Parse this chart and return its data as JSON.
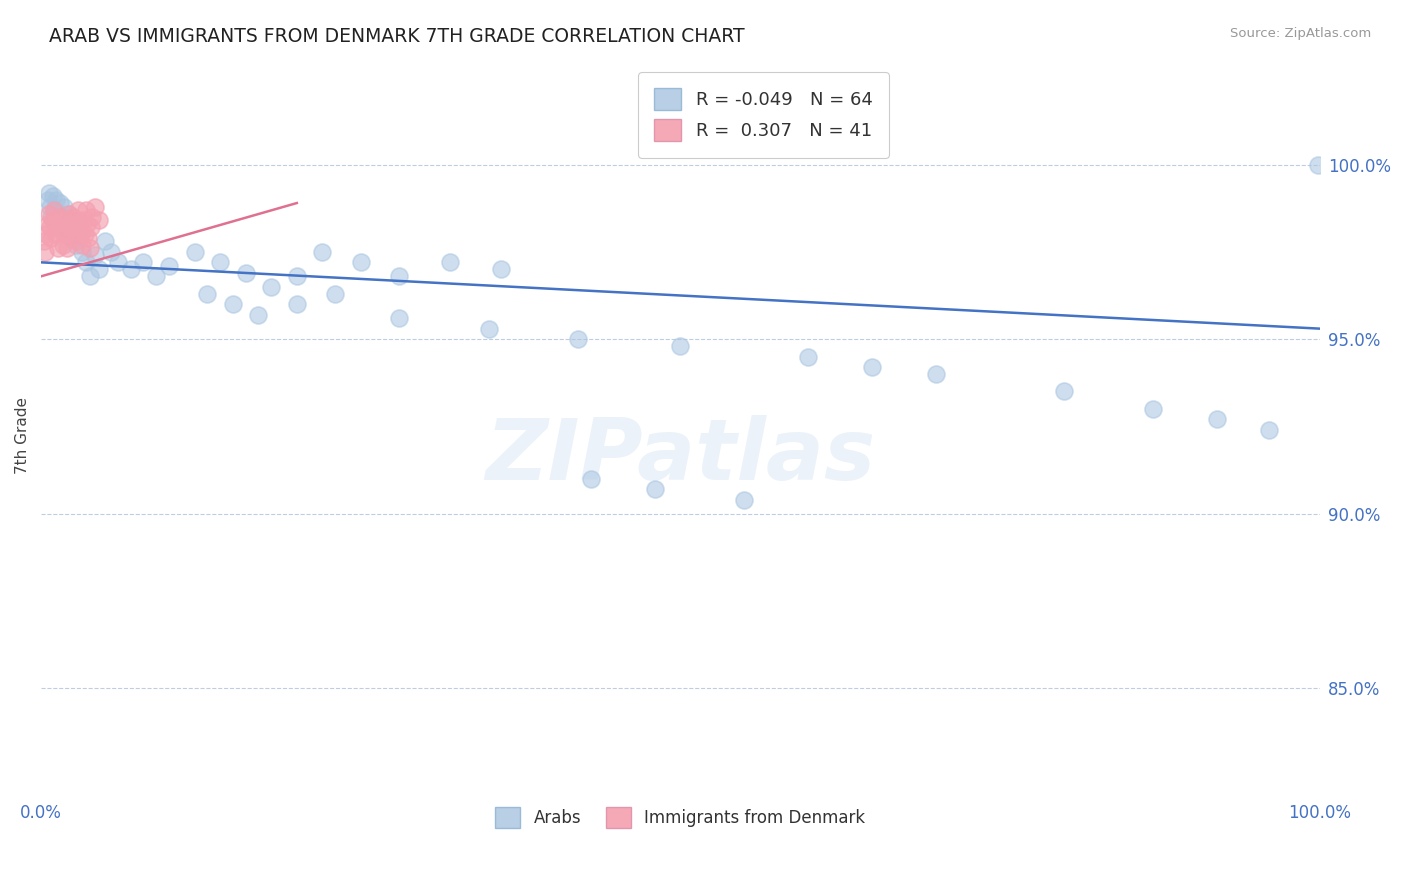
{
  "title": "ARAB VS IMMIGRANTS FROM DENMARK 7TH GRADE CORRELATION CHART",
  "source": "Source: ZipAtlas.com",
  "ylabel": "7th Grade",
  "y_ticks": [
    0.85,
    0.9,
    0.95,
    1.0
  ],
  "y_tick_labels": [
    "85.0%",
    "90.0%",
    "95.0%",
    "100.0%"
  ],
  "x_tick_labels": [
    "0.0%",
    "100.0%"
  ],
  "xlim": [
    0.0,
    1.0
  ],
  "ylim": [
    0.82,
    1.025
  ],
  "legend_arab_r": "-0.049",
  "legend_arab_n": "64",
  "legend_imm_r": "0.307",
  "legend_imm_n": "41",
  "arab_color": "#a8c4e0",
  "imm_color": "#f4a0b0",
  "arab_line_color": "#4472c4",
  "imm_line_color": "#e07090",
  "grid_color": "#b8c8e0",
  "title_color": "#222222",
  "axis_label_color": "#4472c4",
  "background_color": "#ffffff",
  "watermark_text": "ZIPatlas",
  "arab_x": [
    0.005,
    0.006,
    0.007,
    0.008,
    0.009,
    0.01,
    0.011,
    0.012,
    0.013,
    0.014,
    0.015,
    0.016,
    0.017,
    0.018,
    0.019,
    0.02,
    0.021,
    0.022,
    0.023,
    0.025,
    0.027,
    0.03,
    0.032,
    0.035,
    0.038,
    0.042,
    0.045,
    0.05,
    0.055,
    0.06,
    0.07,
    0.08,
    0.09,
    0.1,
    0.12,
    0.14,
    0.16,
    0.18,
    0.2,
    0.22,
    0.25,
    0.28,
    0.32,
    0.36,
    0.13,
    0.15,
    0.17,
    0.2,
    0.23,
    0.28,
    0.35,
    0.42,
    0.5,
    0.6,
    0.65,
    0.7,
    0.8,
    0.87,
    0.92,
    0.96,
    0.43,
    0.48,
    0.55,
    0.999
  ],
  "arab_y": [
    0.99,
    0.992,
    0.988,
    0.985,
    0.991,
    0.987,
    0.984,
    0.99,
    0.986,
    0.983,
    0.989,
    0.985,
    0.982,
    0.988,
    0.984,
    0.981,
    0.986,
    0.982,
    0.984,
    0.979,
    0.977,
    0.98,
    0.975,
    0.972,
    0.968,
    0.974,
    0.97,
    0.978,
    0.975,
    0.972,
    0.97,
    0.972,
    0.968,
    0.971,
    0.975,
    0.972,
    0.969,
    0.965,
    0.968,
    0.975,
    0.972,
    0.968,
    0.972,
    0.97,
    0.963,
    0.96,
    0.957,
    0.96,
    0.963,
    0.956,
    0.953,
    0.95,
    0.948,
    0.945,
    0.942,
    0.94,
    0.935,
    0.93,
    0.927,
    0.924,
    0.91,
    0.907,
    0.904,
    1.0
  ],
  "imm_x": [
    0.002,
    0.003,
    0.004,
    0.005,
    0.006,
    0.007,
    0.008,
    0.009,
    0.01,
    0.011,
    0.012,
    0.013,
    0.014,
    0.015,
    0.016,
    0.017,
    0.018,
    0.019,
    0.02,
    0.021,
    0.022,
    0.023,
    0.024,
    0.025,
    0.026,
    0.027,
    0.028,
    0.029,
    0.03,
    0.031,
    0.032,
    0.033,
    0.034,
    0.035,
    0.036,
    0.037,
    0.038,
    0.039,
    0.04,
    0.042,
    0.045
  ],
  "imm_y": [
    0.978,
    0.975,
    0.98,
    0.983,
    0.986,
    0.982,
    0.979,
    0.984,
    0.987,
    0.983,
    0.98,
    0.976,
    0.982,
    0.985,
    0.981,
    0.977,
    0.984,
    0.98,
    0.976,
    0.983,
    0.986,
    0.982,
    0.979,
    0.985,
    0.981,
    0.978,
    0.984,
    0.987,
    0.983,
    0.98,
    0.977,
    0.984,
    0.98,
    0.987,
    0.983,
    0.979,
    0.976,
    0.982,
    0.985,
    0.988,
    0.984
  ],
  "arab_trend_x": [
    0.0,
    1.0
  ],
  "arab_trend_y": [
    0.972,
    0.953
  ],
  "imm_trend_x": [
    0.0,
    0.2
  ],
  "imm_trend_y": [
    0.968,
    0.989
  ]
}
